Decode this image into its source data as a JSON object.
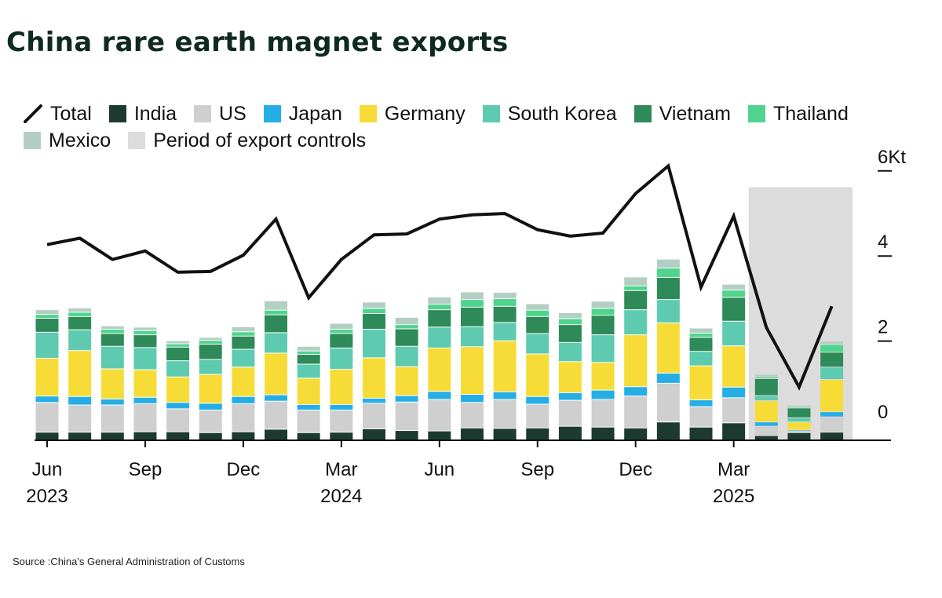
{
  "title": "China rare earth magnet exports",
  "source": "Source :China's General Administration of Customs",
  "legend": [
    {
      "label": "Total",
      "kind": "line",
      "color": "#111111"
    },
    {
      "label": "India",
      "kind": "swatch",
      "color": "#1c3a30"
    },
    {
      "label": "US",
      "kind": "swatch",
      "color": "#cfcfcf"
    },
    {
      "label": "Japan",
      "kind": "swatch",
      "color": "#25aee6"
    },
    {
      "label": "Germany",
      "kind": "swatch",
      "color": "#f7dc38"
    },
    {
      "label": "South Korea",
      "kind": "swatch",
      "color": "#5ecbb0"
    },
    {
      "label": "Vietnam",
      "kind": "swatch",
      "color": "#2e8a58"
    },
    {
      "label": "Thailand",
      "kind": "swatch",
      "color": "#4fd48e"
    },
    {
      "label": "Mexico",
      "kind": "swatch",
      "color": "#b3cfc3"
    },
    {
      "label": "Period of export controls",
      "kind": "swatch",
      "color": "#dcdcdc"
    }
  ],
  "chart_data": {
    "type": "bar",
    "stacked": true,
    "title": "China rare earth magnet exports",
    "ylabel": "Kt",
    "ylim": [
      0,
      6
    ],
    "yticks": [
      {
        "value": 0,
        "label": "0"
      },
      {
        "value": 2,
        "label": "2"
      },
      {
        "value": 4,
        "label": "4"
      },
      {
        "value": 6,
        "label": "6Kt"
      }
    ],
    "x_tick_labels": [
      {
        "index": 0,
        "month": "Jun",
        "year": "2023"
      },
      {
        "index": 3,
        "month": "Sep",
        "year": ""
      },
      {
        "index": 6,
        "month": "Dec",
        "year": ""
      },
      {
        "index": 9,
        "month": "Mar",
        "year": "2024"
      },
      {
        "index": 12,
        "month": "Jun",
        "year": ""
      },
      {
        "index": 15,
        "month": "Sep",
        "year": ""
      },
      {
        "index": 18,
        "month": "Dec",
        "year": ""
      },
      {
        "index": 21,
        "month": "Mar",
        "year": "2025"
      }
    ],
    "categories": [
      "Jun 2023",
      "Jul 2023",
      "Aug 2023",
      "Sep 2023",
      "Oct 2023",
      "Nov 2023",
      "Dec 2023",
      "Jan 2024",
      "Feb 2024",
      "Mar 2024",
      "Apr 2024",
      "May 2024",
      "Jun 2024",
      "Jul 2024",
      "Aug 2024",
      "Sep 2024",
      "Oct 2024",
      "Nov 2024",
      "Dec 2024",
      "Jan 2025",
      "Feb 2025",
      "Mar 2025",
      "Apr 2025",
      "May 2025",
      "Jun 2025"
    ],
    "series": [
      {
        "name": "India",
        "color": "#1c3a30",
        "values": [
          0.18,
          0.18,
          0.18,
          0.19,
          0.19,
          0.17,
          0.19,
          0.25,
          0.17,
          0.18,
          0.26,
          0.22,
          0.21,
          0.28,
          0.27,
          0.28,
          0.32,
          0.3,
          0.28,
          0.42,
          0.3,
          0.4,
          0.1,
          0.17,
          0.18
        ]
      },
      {
        "name": "US",
        "color": "#cfcfcf",
        "values": [
          0.7,
          0.64,
          0.64,
          0.66,
          0.54,
          0.53,
          0.66,
          0.66,
          0.53,
          0.52,
          0.6,
          0.67,
          0.74,
          0.6,
          0.68,
          0.56,
          0.61,
          0.65,
          0.75,
          0.91,
          0.48,
          0.59,
          0.22,
          0.03,
          0.36
        ]
      },
      {
        "name": "Japan",
        "color": "#25aee6",
        "values": [
          0.15,
          0.2,
          0.14,
          0.15,
          0.15,
          0.16,
          0.17,
          0.15,
          0.13,
          0.13,
          0.12,
          0.15,
          0.19,
          0.19,
          0.18,
          0.18,
          0.18,
          0.22,
          0.22,
          0.24,
          0.16,
          0.25,
          0.1,
          0.03,
          0.12
        ]
      },
      {
        "name": "Germany",
        "color": "#f7dc38",
        "values": [
          0.89,
          1.08,
          0.71,
          0.65,
          0.6,
          0.68,
          0.69,
          0.98,
          0.62,
          0.83,
          0.95,
          0.68,
          1.02,
          1.12,
          1.2,
          1.0,
          0.73,
          0.65,
          1.22,
          1.18,
          0.8,
          0.97,
          0.5,
          0.19,
          0.76
        ]
      },
      {
        "name": "South Korea",
        "color": "#5ecbb0",
        "values": [
          0.61,
          0.49,
          0.53,
          0.52,
          0.38,
          0.35,
          0.42,
          0.48,
          0.33,
          0.5,
          0.67,
          0.48,
          0.49,
          0.47,
          0.43,
          0.48,
          0.45,
          0.65,
          0.59,
          0.55,
          0.34,
          0.58,
          0.12,
          0.1,
          0.29
        ]
      },
      {
        "name": "Vietnam",
        "color": "#2e8a58",
        "values": [
          0.33,
          0.31,
          0.3,
          0.3,
          0.32,
          0.36,
          0.31,
          0.42,
          0.23,
          0.34,
          0.37,
          0.41,
          0.41,
          0.46,
          0.38,
          0.4,
          0.42,
          0.46,
          0.45,
          0.52,
          0.33,
          0.56,
          0.4,
          0.23,
          0.35
        ]
      },
      {
        "name": "Thailand",
        "color": "#4fd48e",
        "values": [
          0.09,
          0.1,
          0.1,
          0.1,
          0.08,
          0.09,
          0.1,
          0.11,
          0.08,
          0.1,
          0.12,
          0.1,
          0.13,
          0.18,
          0.18,
          0.15,
          0.14,
          0.16,
          0.11,
          0.22,
          0.1,
          0.17,
          0.04,
          0.03,
          0.18
        ]
      },
      {
        "name": "Mexico",
        "color": "#b3cfc3",
        "values": [
          0.11,
          0.1,
          0.08,
          0.08,
          0.07,
          0.07,
          0.12,
          0.22,
          0.11,
          0.14,
          0.15,
          0.17,
          0.17,
          0.18,
          0.15,
          0.15,
          0.14,
          0.17,
          0.21,
          0.21,
          0.12,
          0.14,
          0.06,
          0.04,
          0.08
        ]
      }
    ],
    "total": {
      "name": "Total",
      "color": "#111111",
      "values": [
        4.6,
        4.75,
        4.25,
        4.45,
        3.95,
        3.97,
        4.35,
        5.2,
        3.35,
        4.25,
        4.83,
        4.85,
        5.2,
        5.3,
        5.33,
        4.95,
        4.8,
        4.87,
        5.8,
        6.45,
        3.6,
        5.27,
        2.65,
        1.25,
        3.15
      ]
    },
    "export_controls_period": {
      "start": "Apr 2025",
      "end": "Jun 2025",
      "color": "#dcdcdc"
    }
  }
}
